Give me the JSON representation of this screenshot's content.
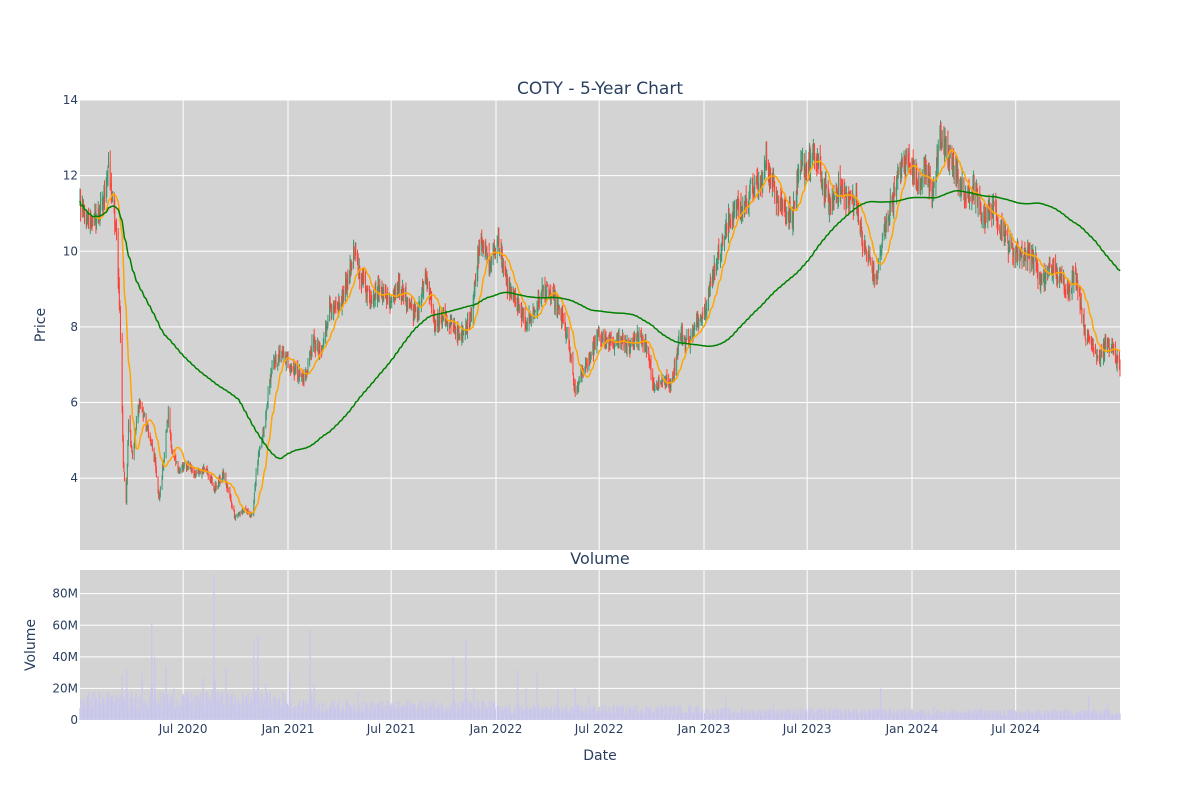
{
  "chart_data": [
    {
      "type": "candlestick",
      "title": "COTY - 5-Year Chart",
      "xlabel": "",
      "ylabel": "Price",
      "ylim": [
        2.1,
        14.0
      ],
      "yticks": [
        4,
        6,
        8,
        10,
        12,
        14
      ],
      "x_range": [
        "2020-01-02",
        "2024-12-31"
      ],
      "background": "#d3d3d3",
      "grid": true,
      "legend": "none",
      "candle_colors": {
        "up": "#3d9970",
        "down": "#ff4136"
      },
      "overlays": [
        {
          "color": "#ffa500",
          "window": 20
        },
        {
          "color": "#008000",
          "window": 200
        }
      ],
      "series": [
        {
          "interval_days": 1,
          "close_anchors": [
            [
              "2020-01-02",
              11.25
            ],
            [
              "2020-01-15",
              10.7
            ],
            [
              "2020-02-01",
              10.9
            ],
            [
              "2020-02-12",
              11.3
            ],
            [
              "2020-02-20",
              12.2
            ],
            [
              "2020-02-28",
              11.3
            ],
            [
              "2020-03-06",
              10.4
            ],
            [
              "2020-03-12",
              8.4
            ],
            [
              "2020-03-18",
              4.4
            ],
            [
              "2020-03-23",
              3.3
            ],
            [
              "2020-03-27",
              5.6
            ],
            [
              "2020-04-03",
              4.6
            ],
            [
              "2020-04-15",
              6.0
            ],
            [
              "2020-04-30",
              5.3
            ],
            [
              "2020-05-12",
              4.5
            ],
            [
              "2020-05-20",
              3.4
            ],
            [
              "2020-05-27",
              4.4
            ],
            [
              "2020-06-05",
              5.7
            ],
            [
              "2020-06-12",
              4.6
            ],
            [
              "2020-06-25",
              4.2
            ],
            [
              "2020-07-10",
              4.4
            ],
            [
              "2020-07-25",
              4.05
            ],
            [
              "2020-08-10",
              4.3
            ],
            [
              "2020-08-25",
              3.7
            ],
            [
              "2020-09-10",
              4.1
            ],
            [
              "2020-09-30",
              3.0
            ],
            [
              "2020-10-15",
              3.15
            ],
            [
              "2020-10-30",
              3.0
            ],
            [
              "2020-11-08",
              4.4
            ],
            [
              "2020-11-20",
              5.3
            ],
            [
              "2020-12-03",
              6.9
            ],
            [
              "2020-12-20",
              7.3
            ],
            [
              "2021-01-10",
              6.9
            ],
            [
              "2021-01-30",
              6.6
            ],
            [
              "2021-02-15",
              7.6
            ],
            [
              "2021-02-28",
              7.2
            ],
            [
              "2021-03-15",
              8.6
            ],
            [
              "2021-03-30",
              8.4
            ],
            [
              "2021-04-10",
              8.9
            ],
            [
              "2021-04-25",
              9.9
            ],
            [
              "2021-05-10",
              9.3
            ],
            [
              "2021-05-25",
              8.8
            ],
            [
              "2021-06-15",
              9.0
            ],
            [
              "2021-06-28",
              8.7
            ],
            [
              "2021-07-15",
              9.1
            ],
            [
              "2021-08-01",
              8.6
            ],
            [
              "2021-08-15",
              8.3
            ],
            [
              "2021-08-31",
              9.3
            ],
            [
              "2021-09-15",
              8.1
            ],
            [
              "2021-10-01",
              8.3
            ],
            [
              "2021-10-20",
              7.9
            ],
            [
              "2021-11-05",
              7.8
            ],
            [
              "2021-11-20",
              8.4
            ],
            [
              "2021-12-05",
              10.5
            ],
            [
              "2021-12-20",
              9.6
            ],
            [
              "2022-01-05",
              10.3
            ],
            [
              "2022-01-20",
              9.1
            ],
            [
              "2022-02-05",
              8.7
            ],
            [
              "2022-02-20",
              8.1
            ],
            [
              "2022-03-10",
              8.4
            ],
            [
              "2022-03-25",
              9.0
            ],
            [
              "2022-04-10",
              8.8
            ],
            [
              "2022-04-25",
              8.3
            ],
            [
              "2022-05-10",
              7.4
            ],
            [
              "2022-05-20",
              6.2
            ],
            [
              "2022-06-01",
              6.8
            ],
            [
              "2022-06-15",
              7.2
            ],
            [
              "2022-06-30",
              7.8
            ],
            [
              "2022-07-15",
              7.5
            ],
            [
              "2022-08-05",
              7.7
            ],
            [
              "2022-08-25",
              7.4
            ],
            [
              "2022-09-10",
              7.8
            ],
            [
              "2022-09-25",
              7.4
            ],
            [
              "2022-10-05",
              6.4
            ],
            [
              "2022-10-20",
              6.6
            ],
            [
              "2022-11-05",
              6.5
            ],
            [
              "2022-11-20",
              7.8
            ],
            [
              "2022-12-05",
              7.6
            ],
            [
              "2022-12-20",
              8.1
            ],
            [
              "2023-01-05",
              8.6
            ],
            [
              "2023-01-20",
              9.6
            ],
            [
              "2023-02-10",
              10.6
            ],
            [
              "2023-02-25",
              11.2
            ],
            [
              "2023-03-10",
              11.1
            ],
            [
              "2023-03-25",
              11.7
            ],
            [
              "2023-04-10",
              11.7
            ],
            [
              "2023-04-20",
              12.4
            ],
            [
              "2023-05-05",
              11.6
            ],
            [
              "2023-05-20",
              11.2
            ],
            [
              "2023-06-05",
              10.9
            ],
            [
              "2023-06-20",
              12.2
            ],
            [
              "2023-07-05",
              12.3
            ],
            [
              "2023-07-15",
              12.6
            ],
            [
              "2023-07-28",
              11.8
            ],
            [
              "2023-08-10",
              11.2
            ],
            [
              "2023-08-25",
              11.7
            ],
            [
              "2023-09-10",
              11.3
            ],
            [
              "2023-09-25",
              11.4
            ],
            [
              "2023-10-05",
              10.3
            ],
            [
              "2023-10-15",
              9.9
            ],
            [
              "2023-10-30",
              9.2
            ],
            [
              "2023-11-10",
              10.3
            ],
            [
              "2023-11-25",
              11.2
            ],
            [
              "2023-12-10",
              12.1
            ],
            [
              "2023-12-25",
              12.5
            ],
            [
              "2024-01-10",
              11.8
            ],
            [
              "2024-01-25",
              12.2
            ],
            [
              "2024-02-05",
              11.5
            ],
            [
              "2024-02-20",
              12.9
            ],
            [
              "2024-03-05",
              12.6
            ],
            [
              "2024-03-20",
              12.0
            ],
            [
              "2024-04-05",
              11.4
            ],
            [
              "2024-04-20",
              11.6
            ],
            [
              "2024-05-05",
              10.8
            ],
            [
              "2024-05-20",
              11.2
            ],
            [
              "2024-06-05",
              10.6
            ],
            [
              "2024-06-25",
              10.0
            ],
            [
              "2024-07-15",
              9.9
            ],
            [
              "2024-07-31",
              9.9
            ],
            [
              "2024-08-15",
              9.1
            ],
            [
              "2024-08-31",
              9.6
            ],
            [
              "2024-09-15",
              9.3
            ],
            [
              "2024-09-30",
              9.0
            ],
            [
              "2024-10-15",
              9.4
            ],
            [
              "2024-10-31",
              7.8
            ],
            [
              "2024-11-10",
              7.6
            ],
            [
              "2024-11-25",
              7.2
            ],
            [
              "2024-12-10",
              7.6
            ],
            [
              "2024-12-31",
              6.95
            ]
          ]
        }
      ]
    },
    {
      "type": "bar",
      "title": "Volume",
      "xlabel": "Date",
      "ylabel": "Volume",
      "ylim": [
        0,
        95000000
      ],
      "yticks": [
        {
          "v": 0,
          "label": "0"
        },
        {
          "v": 20000000,
          "label": "20M"
        },
        {
          "v": 40000000,
          "label": "40M"
        },
        {
          "v": 60000000,
          "label": "60M"
        },
        {
          "v": 80000000,
          "label": "80M"
        }
      ],
      "x_range": [
        "2020-01-02",
        "2024-12-31"
      ],
      "xticks": [
        {
          "date": "2020-07-01",
          "label": "Jul 2020"
        },
        {
          "date": "2021-01-01",
          "label": "Jan 2021"
        },
        {
          "date": "2021-07-01",
          "label": "Jul 2021"
        },
        {
          "date": "2022-01-01",
          "label": "Jan 2022"
        },
        {
          "date": "2022-07-01",
          "label": "Jul 2022"
        },
        {
          "date": "2023-01-01",
          "label": "Jan 2023"
        },
        {
          "date": "2023-07-01",
          "label": "Jul 2023"
        },
        {
          "date": "2024-01-01",
          "label": "Jan 2024"
        },
        {
          "date": "2024-07-01",
          "label": "Jul 2024"
        }
      ],
      "background": "#d3d3d3",
      "grid": true,
      "bar_color": "#c9c7eb",
      "base_volume_by_year": [
        {
          "year": 2020,
          "value": 13000000
        },
        {
          "year": 2021,
          "value": 9000000
        },
        {
          "year": 2022,
          "value": 7000000
        },
        {
          "year": 2023,
          "value": 5500000
        },
        {
          "year": 2024,
          "value": 5000000
        }
      ],
      "volume_spikes": [
        [
          "2020-03-16",
          28000000
        ],
        [
          "2020-03-24",
          32000000
        ],
        [
          "2020-04-20",
          30000000
        ],
        [
          "2020-05-07",
          62000000
        ],
        [
          "2020-05-12",
          40000000
        ],
        [
          "2020-06-01",
          34000000
        ],
        [
          "2020-06-15",
          20000000
        ],
        [
          "2020-08-05",
          27000000
        ],
        [
          "2020-08-24",
          92000000
        ],
        [
          "2020-09-14",
          33000000
        ],
        [
          "2020-11-02",
          50000000
        ],
        [
          "2020-11-09",
          53000000
        ],
        [
          "2020-11-23",
          23000000
        ],
        [
          "2021-01-04",
          30000000
        ],
        [
          "2021-02-09",
          57000000
        ],
        [
          "2021-02-16",
          22000000
        ],
        [
          "2021-05-04",
          18000000
        ],
        [
          "2021-08-20",
          12000000
        ],
        [
          "2021-10-18",
          40000000
        ],
        [
          "2021-11-09",
          51000000
        ],
        [
          "2021-11-23",
          20000000
        ],
        [
          "2022-02-08",
          32000000
        ],
        [
          "2022-02-23",
          20000000
        ],
        [
          "2022-03-14",
          31000000
        ],
        [
          "2022-04-20",
          19000000
        ],
        [
          "2022-05-20",
          20000000
        ],
        [
          "2022-06-13",
          15000000
        ],
        [
          "2023-02-08",
          14000000
        ],
        [
          "2023-05-03",
          10000000
        ],
        [
          "2023-11-07",
          20000000
        ],
        [
          "2024-02-08",
          9000000
        ],
        [
          "2024-05-01",
          8000000
        ],
        [
          "2024-11-06",
          16000000
        ],
        [
          "2024-12-09",
          10000000
        ]
      ]
    }
  ]
}
